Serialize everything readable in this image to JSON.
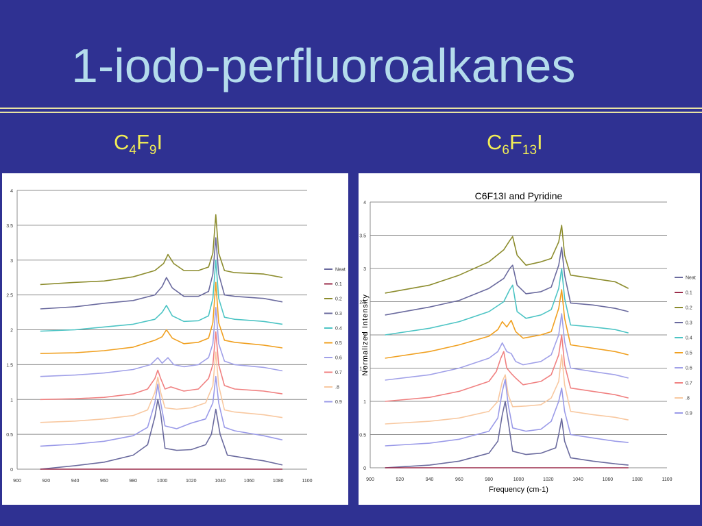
{
  "slide": {
    "title": "1-iodo-perfluoroalkanes",
    "background": "#2f3192",
    "title_color": "#b4dcec",
    "formula_color": "#f2ee55",
    "formula_left": {
      "parts": [
        "C",
        "4",
        "F",
        "9",
        "I"
      ]
    },
    "formula_right": {
      "parts": [
        "C",
        "6",
        "F",
        "13",
        "I"
      ]
    }
  },
  "chart_data": [
    {
      "type": "line",
      "title": "",
      "xlabel": "",
      "ylabel": "",
      "xlim": [
        900,
        1100
      ],
      "ylim": [
        0,
        4
      ],
      "x_ticks": [
        900,
        920,
        940,
        960,
        980,
        1000,
        1020,
        1040,
        1060,
        1080,
        1100
      ],
      "y_ticks": [
        "0",
        "0.5",
        "1",
        "1.5",
        "2",
        "2.5",
        "3",
        "3.5",
        "4"
      ],
      "grid": "horizontal",
      "legend": "right",
      "series": [
        {
          "name": "Neat",
          "color": "#6a6a9e",
          "x": [
            916,
            940,
            960,
            980,
            990,
            995,
            997,
            999,
            1002,
            1010,
            1020,
            1030,
            1034,
            1037,
            1040,
            1045,
            1060,
            1070,
            1083
          ],
          "y": [
            0.0,
            0.05,
            0.1,
            0.2,
            0.35,
            0.75,
            1.0,
            0.8,
            0.3,
            0.27,
            0.28,
            0.35,
            0.5,
            0.86,
            0.5,
            0.2,
            0.15,
            0.12,
            0.06
          ]
        },
        {
          "name": "0.1",
          "color": "#9b2d4b",
          "x": [
            916,
            1083
          ],
          "y": [
            0.0,
            0.0
          ]
        },
        {
          "name": "0.2",
          "color": "#8c8c2d",
          "x": [
            916,
            940,
            960,
            980,
            995,
            1001,
            1004,
            1008,
            1015,
            1025,
            1032,
            1035,
            1037,
            1039,
            1043,
            1050,
            1070,
            1083
          ],
          "y": [
            2.65,
            2.68,
            2.7,
            2.76,
            2.85,
            2.95,
            3.08,
            2.95,
            2.85,
            2.85,
            2.9,
            3.1,
            3.65,
            3.1,
            2.85,
            2.82,
            2.8,
            2.75
          ]
        },
        {
          "name": "0.3",
          "color": "#6a6a9e",
          "x": [
            916,
            940,
            960,
            980,
            995,
            1000,
            1003,
            1007,
            1015,
            1025,
            1032,
            1035,
            1037,
            1039,
            1043,
            1050,
            1070,
            1083
          ],
          "y": [
            2.3,
            2.33,
            2.38,
            2.42,
            2.5,
            2.62,
            2.75,
            2.6,
            2.48,
            2.48,
            2.55,
            2.8,
            3.32,
            2.8,
            2.5,
            2.48,
            2.45,
            2.4
          ]
        },
        {
          "name": "0.4",
          "color": "#4cc4c4",
          "x": [
            916,
            940,
            960,
            980,
            995,
            1000,
            1003,
            1007,
            1015,
            1025,
            1032,
            1035,
            1037,
            1039,
            1043,
            1050,
            1070,
            1083
          ],
          "y": [
            1.98,
            2.0,
            2.04,
            2.08,
            2.15,
            2.25,
            2.35,
            2.2,
            2.12,
            2.13,
            2.2,
            2.45,
            3.0,
            2.45,
            2.18,
            2.15,
            2.12,
            2.08
          ]
        },
        {
          "name": "0.5",
          "color": "#f0a020",
          "x": [
            916,
            940,
            960,
            980,
            995,
            1000,
            1003,
            1007,
            1015,
            1025,
            1032,
            1035,
            1037,
            1039,
            1043,
            1050,
            1070,
            1083
          ],
          "y": [
            1.66,
            1.67,
            1.7,
            1.75,
            1.85,
            1.9,
            2.0,
            1.88,
            1.8,
            1.82,
            1.88,
            2.1,
            2.68,
            2.1,
            1.85,
            1.82,
            1.78,
            1.74
          ]
        },
        {
          "name": "0.6",
          "color": "#a0a0e8",
          "x": [
            916,
            940,
            960,
            980,
            992,
            997,
            1000,
            1004,
            1008,
            1015,
            1025,
            1032,
            1035,
            1037,
            1039,
            1043,
            1050,
            1070,
            1083
          ],
          "y": [
            1.33,
            1.35,
            1.38,
            1.43,
            1.5,
            1.6,
            1.52,
            1.6,
            1.5,
            1.47,
            1.5,
            1.6,
            1.8,
            2.32,
            1.8,
            1.55,
            1.5,
            1.46,
            1.41
          ]
        },
        {
          "name": "0.7",
          "color": "#f08080",
          "x": [
            916,
            940,
            960,
            980,
            990,
            995,
            997,
            999,
            1002,
            1006,
            1015,
            1025,
            1032,
            1035,
            1037,
            1039,
            1043,
            1050,
            1070,
            1083
          ],
          "y": [
            1.0,
            1.01,
            1.03,
            1.08,
            1.15,
            1.3,
            1.42,
            1.3,
            1.15,
            1.18,
            1.12,
            1.15,
            1.3,
            1.5,
            1.97,
            1.5,
            1.2,
            1.15,
            1.12,
            1.08
          ]
        },
        {
          "name": ".8",
          "color": "#f8c8a0",
          "x": [
            916,
            940,
            960,
            980,
            990,
            995,
            997,
            999,
            1002,
            1010,
            1020,
            1030,
            1035,
            1037,
            1039,
            1043,
            1050,
            1070,
            1083
          ],
          "y": [
            0.67,
            0.69,
            0.72,
            0.77,
            0.85,
            1.1,
            1.32,
            1.1,
            0.88,
            0.86,
            0.88,
            0.95,
            1.2,
            1.68,
            1.2,
            0.85,
            0.82,
            0.78,
            0.74
          ]
        },
        {
          "name": "0.9",
          "color": "#9a9ae8",
          "x": [
            916,
            940,
            960,
            980,
            990,
            995,
            997,
            999,
            1002,
            1010,
            1020,
            1030,
            1035,
            1037,
            1039,
            1043,
            1050,
            1070,
            1083
          ],
          "y": [
            0.33,
            0.36,
            0.4,
            0.48,
            0.6,
            0.95,
            1.22,
            0.95,
            0.62,
            0.58,
            0.66,
            0.72,
            0.95,
            1.33,
            0.95,
            0.6,
            0.55,
            0.48,
            0.42
          ]
        }
      ]
    },
    {
      "type": "line",
      "title": "C6F13I and Pyridine",
      "xlabel": "Frequency (cm-1)",
      "ylabel": "Normalized Intensity",
      "xlim": [
        900,
        1100
      ],
      "ylim": [
        0,
        4
      ],
      "x_ticks": [
        900,
        920,
        940,
        960,
        980,
        1000,
        1020,
        1040,
        1060,
        1080,
        1100
      ],
      "y_ticks": [
        "0",
        "0.5",
        "1",
        "1.5",
        "2",
        "2.5",
        "3",
        "3.5",
        "4"
      ],
      "grid": "horizontal",
      "legend": "right",
      "series": [
        {
          "name": "Neat",
          "color": "#6a6a9e",
          "x": [
            910,
            940,
            960,
            980,
            986,
            989,
            991,
            993,
            996,
            1005,
            1015,
            1025,
            1027,
            1029,
            1031,
            1035,
            1050,
            1065,
            1074
          ],
          "y": [
            0.0,
            0.04,
            0.1,
            0.22,
            0.4,
            0.8,
            1.0,
            0.7,
            0.25,
            0.2,
            0.22,
            0.3,
            0.5,
            0.74,
            0.4,
            0.15,
            0.1,
            0.06,
            0.04
          ]
        },
        {
          "name": "0.1",
          "color": "#9b2d4b",
          "x": [
            910,
            1074
          ],
          "y": [
            0.0,
            0.0
          ]
        },
        {
          "name": "0.2",
          "color": "#8c8c2d",
          "x": [
            910,
            940,
            960,
            980,
            990,
            994,
            996,
            999,
            1005,
            1015,
            1022,
            1027,
            1029,
            1031,
            1035,
            1050,
            1065,
            1074
          ],
          "y": [
            2.63,
            2.75,
            2.9,
            3.1,
            3.28,
            3.42,
            3.48,
            3.2,
            3.05,
            3.1,
            3.15,
            3.4,
            3.65,
            3.2,
            2.9,
            2.85,
            2.8,
            2.7
          ]
        },
        {
          "name": "0.3",
          "color": "#6a6a9e",
          "x": [
            910,
            940,
            960,
            980,
            990,
            994,
            996,
            999,
            1005,
            1015,
            1022,
            1027,
            1029,
            1031,
            1035,
            1050,
            1065,
            1074
          ],
          "y": [
            2.3,
            2.42,
            2.52,
            2.7,
            2.85,
            3.0,
            3.05,
            2.75,
            2.62,
            2.65,
            2.72,
            3.05,
            3.32,
            2.9,
            2.48,
            2.45,
            2.4,
            2.35
          ]
        },
        {
          "name": "0.4",
          "color": "#4cc4c4",
          "x": [
            910,
            940,
            960,
            980,
            990,
            994,
            996,
            999,
            1005,
            1015,
            1022,
            1027,
            1029,
            1031,
            1035,
            1050,
            1065,
            1074
          ],
          "y": [
            2.0,
            2.1,
            2.2,
            2.35,
            2.5,
            2.68,
            2.75,
            2.35,
            2.25,
            2.3,
            2.38,
            2.7,
            3.0,
            2.55,
            2.15,
            2.12,
            2.08,
            2.03
          ]
        },
        {
          "name": "0.5",
          "color": "#f0a020",
          "x": [
            910,
            940,
            960,
            980,
            986,
            989,
            992,
            995,
            998,
            1003,
            1015,
            1022,
            1027,
            1029,
            1031,
            1035,
            1050,
            1065,
            1074
          ],
          "y": [
            1.65,
            1.75,
            1.85,
            1.98,
            2.08,
            2.2,
            2.12,
            2.22,
            2.05,
            1.95,
            2.0,
            2.05,
            2.4,
            2.68,
            2.25,
            1.85,
            1.8,
            1.75,
            1.7
          ]
        },
        {
          "name": "0.6",
          "color": "#a0a0e8",
          "x": [
            910,
            940,
            960,
            980,
            986,
            989,
            992,
            995,
            998,
            1003,
            1015,
            1022,
            1027,
            1029,
            1031,
            1035,
            1050,
            1065,
            1074
          ],
          "y": [
            1.32,
            1.4,
            1.5,
            1.65,
            1.75,
            1.88,
            1.75,
            1.72,
            1.6,
            1.55,
            1.6,
            1.7,
            2.0,
            2.32,
            1.9,
            1.5,
            1.45,
            1.4,
            1.35
          ]
        },
        {
          "name": "0.7",
          "color": "#f08080",
          "x": [
            910,
            940,
            960,
            980,
            985,
            988,
            990,
            992,
            995,
            998,
            1003,
            1015,
            1022,
            1027,
            1029,
            1031,
            1035,
            1050,
            1065,
            1074
          ],
          "y": [
            1.0,
            1.06,
            1.15,
            1.3,
            1.45,
            1.65,
            1.75,
            1.5,
            1.42,
            1.35,
            1.25,
            1.3,
            1.4,
            1.7,
            2.0,
            1.55,
            1.2,
            1.15,
            1.1,
            1.05
          ]
        },
        {
          "name": ".8",
          "color": "#f8c8a0",
          "x": [
            910,
            940,
            960,
            980,
            986,
            989,
            991,
            993,
            996,
            1005,
            1015,
            1022,
            1027,
            1029,
            1031,
            1035,
            1050,
            1065,
            1074
          ],
          "y": [
            0.66,
            0.7,
            0.75,
            0.85,
            1.0,
            1.3,
            1.4,
            1.1,
            0.92,
            0.93,
            0.95,
            1.05,
            1.3,
            1.7,
            1.25,
            0.85,
            0.8,
            0.76,
            0.72
          ]
        },
        {
          "name": "0.9",
          "color": "#9a9ae8",
          "x": [
            910,
            940,
            960,
            980,
            986,
            989,
            991,
            993,
            996,
            1005,
            1015,
            1022,
            1027,
            1029,
            1031,
            1035,
            1050,
            1065,
            1074
          ],
          "y": [
            0.33,
            0.37,
            0.43,
            0.55,
            0.75,
            1.15,
            1.33,
            0.95,
            0.6,
            0.55,
            0.58,
            0.7,
            1.0,
            1.2,
            0.85,
            0.5,
            0.45,
            0.4,
            0.38
          ]
        }
      ]
    }
  ]
}
